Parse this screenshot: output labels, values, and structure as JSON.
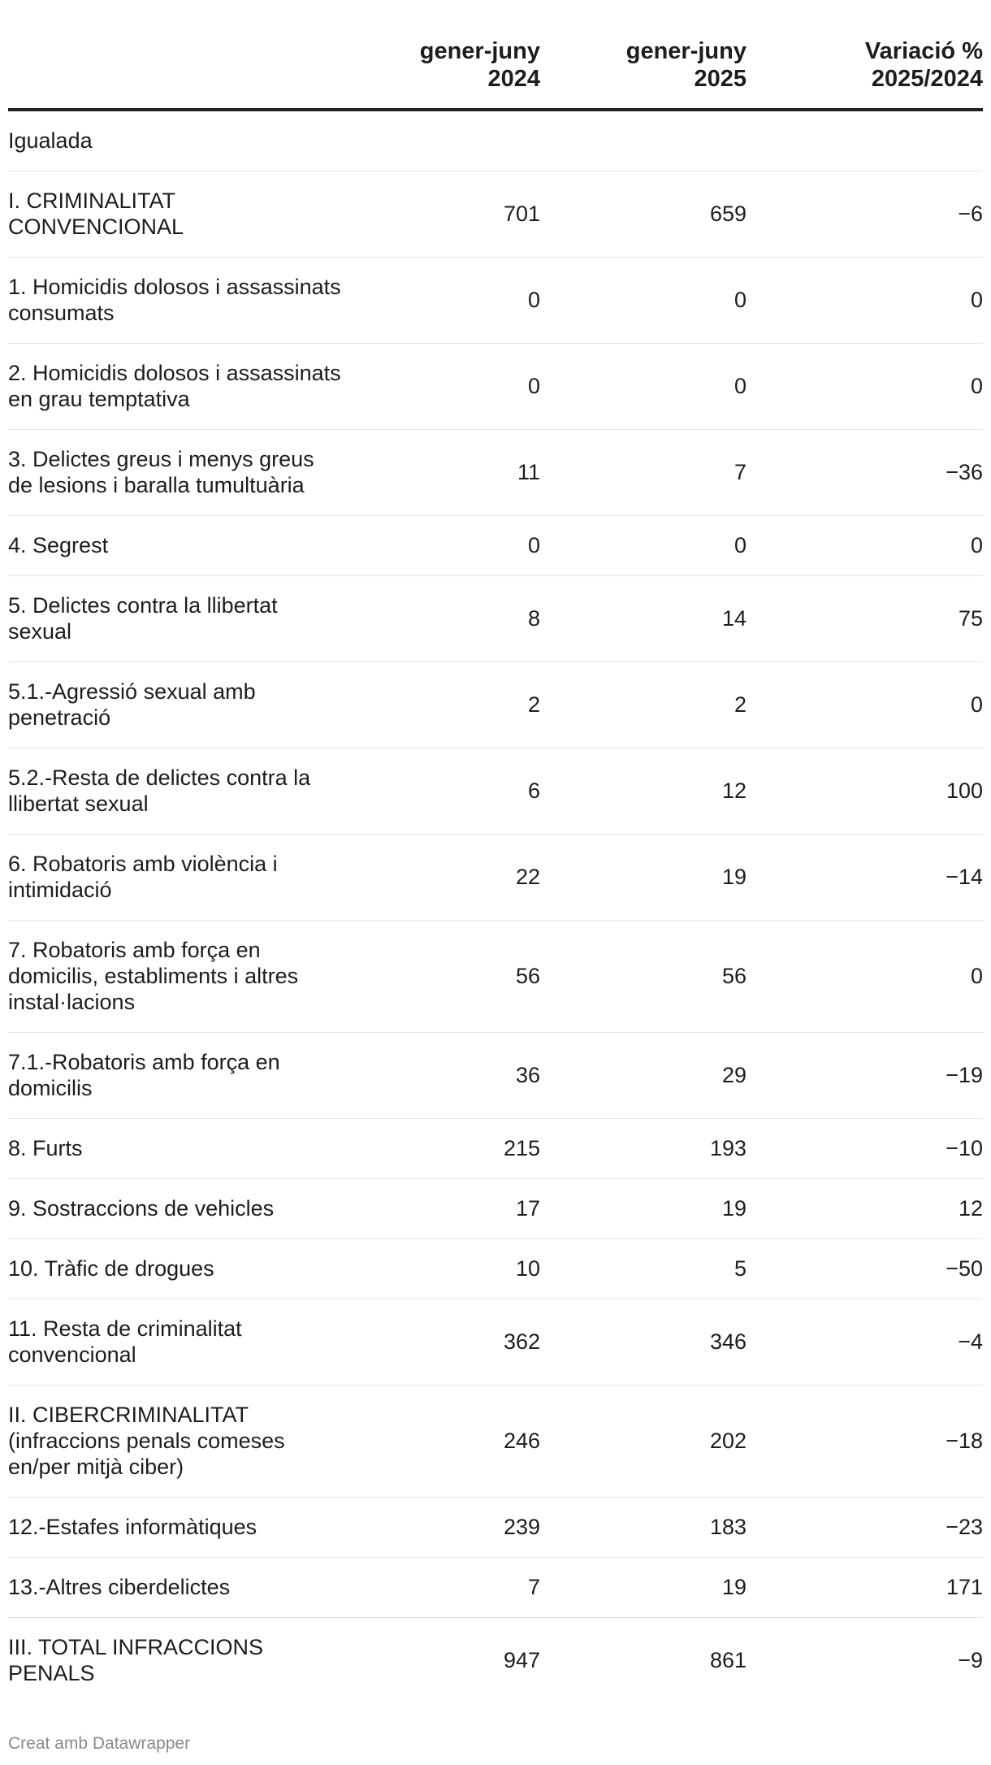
{
  "table": {
    "headers": [
      "",
      "gener-juny\n2024",
      "gener-juny\n2025",
      "Variació %\n2025/2024"
    ],
    "section_label": "Igualada",
    "rows": [
      {
        "label": "I. CRIMINALITAT CONVENCIONAL",
        "v2024": "701",
        "v2025": "659",
        "var": "−6"
      },
      {
        "label": "1. Homicidis dolosos i assassinats consumats",
        "v2024": "0",
        "v2025": "0",
        "var": "0"
      },
      {
        "label": "2. Homicidis dolosos i assassinats en grau temptativa",
        "v2024": "0",
        "v2025": "0",
        "var": "0"
      },
      {
        "label": "3. Delictes greus i menys greus de lesions i baralla tumultuària",
        "v2024": "11",
        "v2025": "7",
        "var": "−36"
      },
      {
        "label": "4. Segrest",
        "v2024": "0",
        "v2025": "0",
        "var": "0"
      },
      {
        "label": "5. Delictes contra la llibertat sexual",
        "v2024": "8",
        "v2025": "14",
        "var": "75"
      },
      {
        "label": "5.1.-Agressió sexual amb penetració",
        "v2024": "2",
        "v2025": "2",
        "var": "0"
      },
      {
        "label": "5.2.-Resta de delictes contra la llibertat sexual",
        "v2024": "6",
        "v2025": "12",
        "var": "100"
      },
      {
        "label": "6. Robatoris amb violència i intimidació",
        "v2024": "22",
        "v2025": "19",
        "var": "−14"
      },
      {
        "label": "7. Robatoris amb força en domicilis, establiments i altres instal·lacions",
        "v2024": "56",
        "v2025": "56",
        "var": "0"
      },
      {
        "label": "7.1.-Robatoris amb força en domicilis",
        "v2024": "36",
        "v2025": "29",
        "var": "−19"
      },
      {
        "label": "8. Furts",
        "v2024": "215",
        "v2025": "193",
        "var": "−10"
      },
      {
        "label": "9. Sostraccions de vehicles",
        "v2024": "17",
        "v2025": "19",
        "var": "12"
      },
      {
        "label": "10. Tràfic de drogues",
        "v2024": "10",
        "v2025": "5",
        "var": "−50"
      },
      {
        "label": "11. Resta de criminalitat convencional",
        "v2024": "362",
        "v2025": "346",
        "var": "−4"
      },
      {
        "label": "II. CIBERCRIMINALITAT (infraccions penals comeses en/per mitjà ciber)",
        "v2024": "246",
        "v2025": "202",
        "var": "−18"
      },
      {
        "label": "12.-Estafes informàtiques",
        "v2024": "239",
        "v2025": "183",
        "var": "−23"
      },
      {
        "label": "13.-Altres ciberdelictes",
        "v2024": "7",
        "v2025": "19",
        "var": "171"
      },
      {
        "label": "III. TOTAL INFRACCIONS PENALS",
        "v2024": "947",
        "v2025": "861",
        "var": "−9"
      }
    ]
  },
  "footer": {
    "credit": "Creat amb Datawrapper"
  }
}
